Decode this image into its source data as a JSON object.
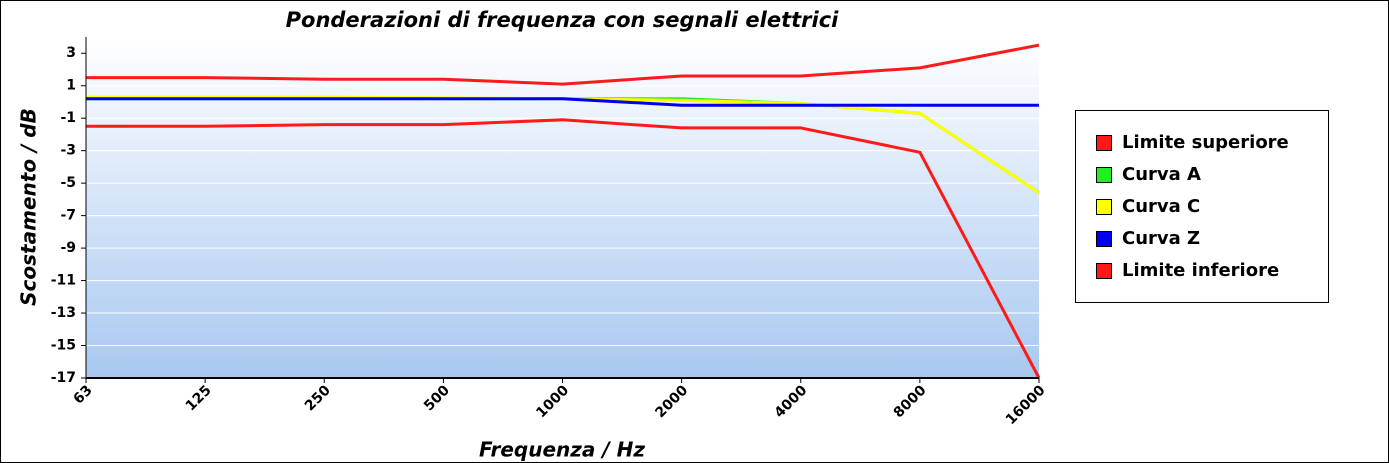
{
  "chart_data": {
    "type": "line",
    "title": "Ponderazioni di frequenza con segnali elettrici",
    "x_label": "Frequenza / Hz",
    "y_label": "Scostamento / dB",
    "categories": [
      "63",
      "125",
      "250",
      "500",
      "1000",
      "2000",
      "4000",
      "8000",
      "16000"
    ],
    "ylim": [
      -17,
      4
    ],
    "yticks": [
      3,
      1,
      -1,
      -3,
      -5,
      -7,
      -9,
      -11,
      -13,
      -15,
      -17
    ],
    "grid": true,
    "legend": "right",
    "series": [
      {
        "name": "Limite superiore",
        "color": "#ff1a1a",
        "values": [
          1.5,
          1.5,
          1.4,
          1.4,
          1.1,
          1.6,
          1.6,
          2.1,
          3.5
        ]
      },
      {
        "name": "Curva A",
        "color": "#22ee22",
        "values": [
          0.2,
          0.2,
          0.2,
          0.2,
          0.2,
          0.2,
          -0.1,
          -0.7,
          -5.6
        ]
      },
      {
        "name": "Curva C",
        "color": "#ffff00",
        "values": [
          0.3,
          0.3,
          0.3,
          0.25,
          0.2,
          0.1,
          -0.1,
          -0.7,
          -5.6
        ]
      },
      {
        "name": "Curva Z",
        "color": "#0000ee",
        "values": [
          0.2,
          0.2,
          0.2,
          0.2,
          0.2,
          -0.2,
          -0.2,
          -0.2,
          -0.2
        ]
      },
      {
        "name": "Limite inferiore",
        "color": "#ff1a1a",
        "values": [
          -1.5,
          -1.5,
          -1.4,
          -1.4,
          -1.1,
          -1.6,
          -1.6,
          -3.1,
          -17
        ]
      }
    ]
  }
}
